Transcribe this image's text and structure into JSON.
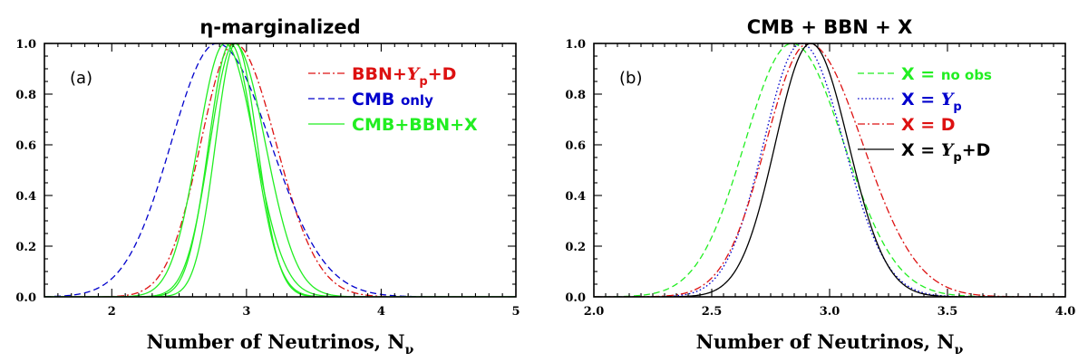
{
  "chart_data": [
    {
      "type": "line",
      "panel_label": "(a)",
      "title": "η-marginalized",
      "xlabel": "Number of Neutrinos, N",
      "xlabel_sub": "ν",
      "xlim": [
        1.5,
        5
      ],
      "ylim": [
        0,
        1
      ],
      "xticks": [
        2,
        3,
        4,
        5
      ],
      "xtick_labels": [
        "2",
        "3",
        "4",
        "5"
      ],
      "yticks": [
        0,
        0.2,
        0.4,
        0.6,
        0.8,
        1
      ],
      "ytick_labels": [
        "0.0",
        "0.2",
        "0.4",
        "0.6",
        "0.8",
        "1.0"
      ],
      "legend_position": "top-right",
      "legend": [
        {
          "name": "BBN+Yp+D",
          "parts": [
            [
              "BBN+",
              "n"
            ],
            [
              "Y",
              "i"
            ],
            [
              "p",
              "sub"
            ],
            [
              "+D",
              "n"
            ]
          ],
          "color": "#dd1111",
          "style": "dashdot"
        },
        {
          "name": "CMB only",
          "parts": [
            [
              "CMB ",
              "n"
            ],
            [
              "only",
              "small"
            ]
          ],
          "color": "#0000cc",
          "style": "dashed"
        },
        {
          "name": "CMB+BBN+X",
          "parts": [
            [
              "CMB+BBN+X",
              "n"
            ]
          ],
          "color": "#22ee22",
          "style": "solid"
        }
      ],
      "series": [
        {
          "name": "BBN+Yp+D",
          "color": "#dd1111",
          "style": "dashdot",
          "mu": 2.91,
          "sigma_left": 0.25,
          "sigma_right": 0.31
        },
        {
          "name": "CMB only",
          "color": "#0000cc",
          "style": "dashed",
          "mu": 2.78,
          "sigma_left": 0.34,
          "sigma_right": 0.4
        },
        {
          "name": "CMB+BBN+X (no obs)",
          "color": "#22ee22",
          "style": "solid",
          "mu": 2.84,
          "sigma_left": 0.2,
          "sigma_right": 0.22
        },
        {
          "name": "CMB+BBN+X (Yp)",
          "color": "#22ee22",
          "style": "solid",
          "mu": 2.88,
          "sigma_left": 0.16,
          "sigma_right": 0.18
        },
        {
          "name": "CMB+BBN+X (D)",
          "color": "#22ee22",
          "style": "solid",
          "mu": 2.91,
          "sigma_left": 0.18,
          "sigma_right": 0.23
        },
        {
          "name": "CMB+BBN+X (Yp+D)",
          "color": "#22ee22",
          "style": "solid",
          "mu": 2.92,
          "sigma_left": 0.15,
          "sigma_right": 0.16
        }
      ]
    },
    {
      "type": "line",
      "panel_label": "(b)",
      "title": "CMB + BBN + X",
      "xlabel": "Number of Neutrinos, N",
      "xlabel_sub": "ν",
      "xlim": [
        2.0,
        4.0
      ],
      "ylim": [
        0,
        1
      ],
      "xticks": [
        2.0,
        2.5,
        3.0,
        3.5,
        4.0
      ],
      "xtick_labels": [
        "2.0",
        "2.5",
        "3.0",
        "3.5",
        "4.0"
      ],
      "yticks": [
        0,
        0.2,
        0.4,
        0.6,
        0.8,
        1
      ],
      "ytick_labels": [
        "0.0",
        "0.2",
        "0.4",
        "0.6",
        "0.8",
        "1.0"
      ],
      "legend_position": "top-right",
      "legend": [
        {
          "name": "X = no obs",
          "parts": [
            [
              "X = ",
              "n"
            ],
            [
              "no obs",
              "small"
            ]
          ],
          "color": "#22ee22",
          "style": "dashed"
        },
        {
          "name": "X = Yp",
          "parts": [
            [
              "X = ",
              "n"
            ],
            [
              "Y",
              "i"
            ],
            [
              "p",
              "sub"
            ]
          ],
          "color": "#0000cc",
          "style": "dotted"
        },
        {
          "name": "X = D",
          "parts": [
            [
              "X = D",
              "n"
            ]
          ],
          "color": "#dd1111",
          "style": "dashdot"
        },
        {
          "name": "X = Yp+D",
          "parts": [
            [
              "X = ",
              "n"
            ],
            [
              "Y",
              "i"
            ],
            [
              "p",
              "sub"
            ],
            [
              "+D",
              "n"
            ]
          ],
          "color": "#000000",
          "style": "solid"
        }
      ],
      "series": [
        {
          "name": "X = no obs",
          "color": "#22ee22",
          "style": "dashed",
          "mu": 2.84,
          "sigma_left": 0.2,
          "sigma_right": 0.22
        },
        {
          "name": "X = Yp",
          "color": "#0000cc",
          "style": "dotted",
          "mu": 2.88,
          "sigma_left": 0.16,
          "sigma_right": 0.18
        },
        {
          "name": "X = D",
          "color": "#dd1111",
          "style": "dashdot",
          "mu": 2.91,
          "sigma_left": 0.18,
          "sigma_right": 0.23
        },
        {
          "name": "X = Yp+D",
          "color": "#000000",
          "style": "solid",
          "mu": 2.92,
          "sigma_left": 0.15,
          "sigma_right": 0.16
        }
      ]
    }
  ]
}
